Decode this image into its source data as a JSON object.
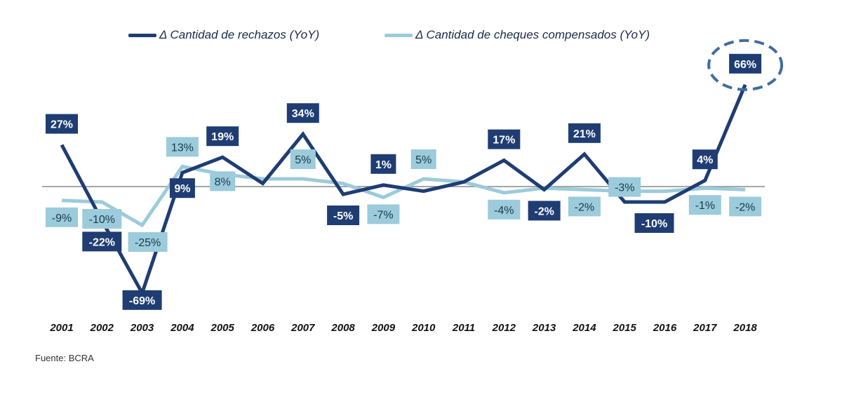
{
  "chart_data": {
    "type": "line",
    "title": "",
    "source": "Fuente: BCRA",
    "x": [
      "2001",
      "2002",
      "2003",
      "2004",
      "2005",
      "2006",
      "2007",
      "2008",
      "2009",
      "2010",
      "2011",
      "2012",
      "2013",
      "2014",
      "2015",
      "2016",
      "2017",
      "2018"
    ],
    "ylim": [
      -75,
      75
    ],
    "grid": false,
    "legend_position": "top",
    "highlight": {
      "year": "2018",
      "shape": "dashed-circle"
    },
    "series": [
      {
        "name": "Δ Cantidad de rechazos (YoY)",
        "color": "#1f3d73",
        "values": [
          27,
          -22,
          -69,
          9,
          19,
          2,
          34,
          -5,
          1,
          -3,
          3,
          17,
          -2,
          21,
          -10,
          -10,
          4,
          66
        ],
        "labels": [
          "27%",
          "-22%",
          "-69%",
          "9%",
          "19%",
          null,
          "34%",
          "-5%",
          "1%",
          null,
          null,
          "17%",
          "-2%",
          "21%",
          null,
          "-10%",
          "4%",
          "66%"
        ]
      },
      {
        "name": "Δ Cantidad de cheques compensados (YoY)",
        "color": "#9ccbdb",
        "values": [
          -9,
          -10,
          -25,
          13,
          8,
          5,
          5,
          2,
          -7,
          5,
          3,
          -4,
          -1,
          -2,
          -3,
          -3,
          -1,
          -2
        ],
        "labels": [
          "-9%",
          "-10%",
          "-25%",
          "13%",
          "8%",
          null,
          "5%",
          null,
          "-7%",
          "5%",
          null,
          "-4%",
          null,
          "-2%",
          "-3%",
          null,
          "-1%",
          "-2%"
        ]
      }
    ]
  }
}
